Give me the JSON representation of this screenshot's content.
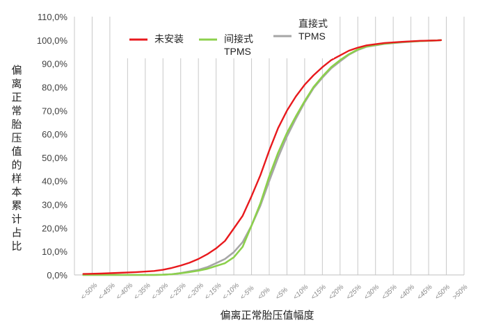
{
  "chart_data": {
    "type": "line",
    "xlabel": "偏离正常胎压值幅度",
    "ylabel": "偏离正常胎压值的样本累计占比",
    "ylim": [
      0,
      110
    ],
    "yticks": [
      "0,0%",
      "10,0%",
      "20,0%",
      "30,0%",
      "40,0%",
      "50,0%",
      "60,0%",
      "70,0%",
      "80,0%",
      "90,0%",
      "100,0%",
      "110,0%"
    ],
    "categories": [
      "<-50%",
      "<-45%",
      "<-40%",
      "<-35%",
      "<-30%",
      "<-25%",
      "<-20%",
      "<-15%",
      "<-10%",
      "<-5%",
      "<0%",
      "<5%",
      "<10%",
      "<15%",
      "<20%",
      "<25%",
      "<30%",
      "<35%",
      "<40%",
      "<45%",
      "<50%",
      ">50%"
    ],
    "grid": "vertical",
    "legend_position": "top",
    "series": [
      {
        "name": "未安装",
        "color": "#e8191d",
        "x": [
          -50,
          -45,
          -40,
          -35,
          -30,
          -27.5,
          -25,
          -22.5,
          -20,
          -17.5,
          -15,
          -12.5,
          -10,
          -7.5,
          -5,
          -2.5,
          0,
          2.5,
          5,
          7.5,
          10,
          12.5,
          15,
          17.5,
          20,
          22.5,
          25,
          27.5,
          30,
          35,
          40,
          45,
          50,
          51
        ],
        "values": [
          0.4,
          0.6,
          0.9,
          1.2,
          1.7,
          2.2,
          3.0,
          4.0,
          5.2,
          6.8,
          8.8,
          11.3,
          14.5,
          19.8,
          25.2,
          33.5,
          42.5,
          53.0,
          62.5,
          70.0,
          76.0,
          81.0,
          85.0,
          88.5,
          91.5,
          93.5,
          95.5,
          96.8,
          97.8,
          98.8,
          99.3,
          99.7,
          99.9,
          100.0
        ]
      },
      {
        "name": "间接式\nTPMS",
        "color": "#8cd04c",
        "x": [
          -50,
          -45,
          -40,
          -35,
          -30,
          -27.5,
          -25,
          -22.5,
          -20,
          -17.5,
          -15,
          -12.5,
          -10,
          -7.5,
          -5,
          -2.5,
          0,
          2.5,
          5,
          7.5,
          10,
          12.5,
          15,
          17.5,
          20,
          22.5,
          25,
          27.5,
          30,
          35,
          40,
          45,
          50,
          51
        ],
        "values": [
          0.0,
          0.0,
          0.0,
          0.0,
          0.0,
          0.1,
          0.3,
          0.7,
          1.2,
          1.8,
          2.6,
          3.8,
          5.0,
          7.5,
          12.0,
          21.0,
          30.5,
          42.0,
          52.0,
          60.5,
          67.5,
          74.0,
          80.0,
          84.5,
          88.5,
          91.5,
          94.0,
          96.0,
          97.3,
          98.5,
          99.2,
          99.6,
          99.9,
          100.0
        ]
      },
      {
        "name": "直接式\nTPMS",
        "color": "#a6a6a6",
        "x": [
          -50,
          -45,
          -40,
          -35,
          -30,
          -27.5,
          -25,
          -22.5,
          -20,
          -17.5,
          -15,
          -12.5,
          -10,
          -7.5,
          -5,
          -2.5,
          0,
          2.5,
          5,
          7.5,
          10,
          12.5,
          15,
          17.5,
          20,
          22.5,
          25,
          27.5,
          30,
          35,
          40,
          45,
          50,
          51
        ],
        "values": [
          0.0,
          0.0,
          0.0,
          0.0,
          0.0,
          0.1,
          0.3,
          0.8,
          1.5,
          2.2,
          3.3,
          5.0,
          6.8,
          9.7,
          14.0,
          21.0,
          29.5,
          40.0,
          50.0,
          59.0,
          66.5,
          73.5,
          79.5,
          84.0,
          88.0,
          91.0,
          93.8,
          95.8,
          97.2,
          98.4,
          99.1,
          99.6,
          99.9,
          100.0
        ]
      }
    ]
  }
}
